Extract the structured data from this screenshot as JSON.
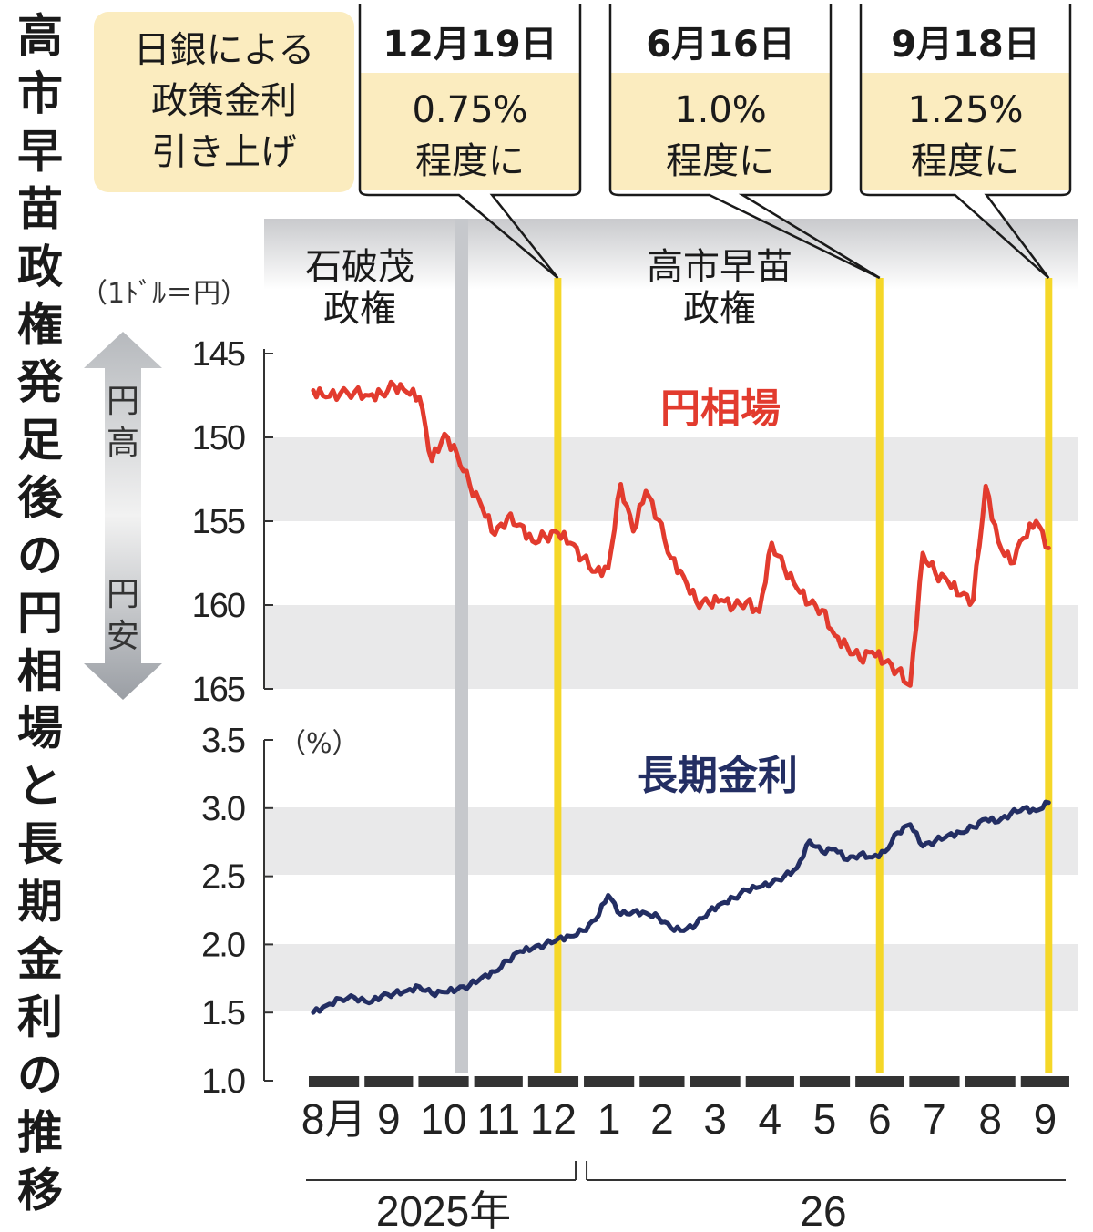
{
  "title": "高市早苗政権発足後の円相場と長期金利の推移",
  "colors": {
    "yen": "#e23b2e",
    "rate": "#232e63",
    "event_line": "#f5d728",
    "note_bg": "#fbecbf",
    "band": "#e9e9ea",
    "header_bar": "#d9dadc"
  },
  "legend": {
    "box_text": [
      "日銀による",
      "政策金利",
      "引き上げ"
    ],
    "events": [
      {
        "date": "12月19日",
        "rate": "0.75%",
        "suffix": "程度に"
      },
      {
        "date": "6月16日",
        "rate": "1.0%",
        "suffix": "程度に"
      },
      {
        "date": "9月18日",
        "rate": "1.25%",
        "suffix": "程度に"
      }
    ]
  },
  "eras": [
    {
      "lines": [
        "石破茂",
        "政権"
      ]
    },
    {
      "lines": [
        "高市早苗",
        "政権"
      ]
    }
  ],
  "chart_data": [
    {
      "type": "line",
      "series": [
        {
          "name": "円相場",
          "color": "#e23b2e"
        }
      ],
      "y_unit": "（1ﾄﾞﾙ＝円）",
      "direction_labels": {
        "up": "円高",
        "down": "円安"
      },
      "ylim": [
        145,
        165
      ],
      "y_inverted": true,
      "yticks": [
        "145",
        "150",
        "155",
        "160",
        "165"
      ],
      "x": [
        "2025-08-05",
        "2025-08-12",
        "2025-08-20",
        "2025-08-28",
        "2025-09-05",
        "2025-09-12",
        "2025-09-19",
        "2025-09-26",
        "2025-10-03",
        "2025-10-10",
        "2025-10-17",
        "2025-10-24",
        "2025-10-31",
        "2025-11-07",
        "2025-11-14",
        "2025-11-21",
        "2025-11-28",
        "2025-12-05",
        "2025-12-12",
        "2025-12-19",
        "2025-12-26",
        "2026-01-02",
        "2026-01-09",
        "2026-01-16",
        "2026-01-23",
        "2026-01-30",
        "2026-02-06",
        "2026-02-13",
        "2026-02-20",
        "2026-02-27",
        "2026-03-06",
        "2026-03-13",
        "2026-03-20",
        "2026-03-27",
        "2026-04-03",
        "2026-04-10",
        "2026-04-17",
        "2026-04-24",
        "2026-05-01",
        "2026-05-08",
        "2026-05-15",
        "2026-05-22",
        "2026-05-29",
        "2026-06-05",
        "2026-06-12",
        "2026-06-19",
        "2026-06-26",
        "2026-07-03",
        "2026-07-10",
        "2026-07-17",
        "2026-07-24",
        "2026-07-31",
        "2026-08-07",
        "2026-08-14",
        "2026-08-21",
        "2026-08-28",
        "2026-09-04",
        "2026-09-11",
        "2026-09-18"
      ],
      "values": [
        147.2,
        147.6,
        147.4,
        147.3,
        147.5,
        147.4,
        146.9,
        147.3,
        147.6,
        151.4,
        149.8,
        151.0,
        152.8,
        154.2,
        155.8,
        154.8,
        155.2,
        156.2,
        155.9,
        155.7,
        156.3,
        157.2,
        158.0,
        157.8,
        152.8,
        155.6,
        153.2,
        154.9,
        157.2,
        158.3,
        159.8,
        159.9,
        159.7,
        160.1,
        159.8,
        160.4,
        156.3,
        157.8,
        159.0,
        159.9,
        160.3,
        161.8,
        162.5,
        163.2,
        162.8,
        163.4,
        163.9,
        164.8,
        156.9,
        158.1,
        158.6,
        159.4,
        159.7,
        152.9,
        156.2,
        157.5,
        156.0,
        155.0,
        156.6
      ]
    },
    {
      "type": "line",
      "series": [
        {
          "name": "長期金利",
          "color": "#232e63"
        }
      ],
      "y_unit": "（%）",
      "ylim": [
        1.0,
        3.5
      ],
      "yticks": [
        "1.0",
        "1.5",
        "2.0",
        "2.5",
        "3.0",
        "3.5"
      ],
      "x": [
        "2025-08-05",
        "2025-08-12",
        "2025-08-20",
        "2025-08-28",
        "2025-09-05",
        "2025-09-12",
        "2025-09-19",
        "2025-09-26",
        "2025-10-03",
        "2025-10-10",
        "2025-10-17",
        "2025-10-24",
        "2025-10-31",
        "2025-11-07",
        "2025-11-14",
        "2025-11-21",
        "2025-11-28",
        "2025-12-05",
        "2025-12-12",
        "2025-12-19",
        "2025-12-26",
        "2026-01-02",
        "2026-01-09",
        "2026-01-16",
        "2026-01-23",
        "2026-01-30",
        "2026-02-06",
        "2026-02-13",
        "2026-02-20",
        "2026-02-27",
        "2026-03-06",
        "2026-03-13",
        "2026-03-20",
        "2026-03-27",
        "2026-04-03",
        "2026-04-10",
        "2026-04-17",
        "2026-04-24",
        "2026-05-01",
        "2026-05-08",
        "2026-05-15",
        "2026-05-22",
        "2026-05-29",
        "2026-06-05",
        "2026-06-12",
        "2026-06-19",
        "2026-06-26",
        "2026-07-03",
        "2026-07-10",
        "2026-07-17",
        "2026-07-24",
        "2026-07-31",
        "2026-08-07",
        "2026-08-14",
        "2026-08-21",
        "2026-08-28",
        "2026-09-04",
        "2026-09-11",
        "2026-09-18"
      ],
      "values": [
        1.5,
        1.55,
        1.6,
        1.61,
        1.57,
        1.62,
        1.64,
        1.66,
        1.69,
        1.64,
        1.65,
        1.67,
        1.7,
        1.76,
        1.8,
        1.88,
        1.95,
        1.97,
        2.0,
        2.04,
        2.06,
        2.1,
        2.18,
        2.36,
        2.22,
        2.24,
        2.23,
        2.2,
        2.12,
        2.1,
        2.15,
        2.24,
        2.3,
        2.34,
        2.4,
        2.42,
        2.45,
        2.5,
        2.56,
        2.76,
        2.68,
        2.7,
        2.62,
        2.66,
        2.64,
        2.68,
        2.82,
        2.88,
        2.72,
        2.76,
        2.8,
        2.82,
        2.86,
        2.92,
        2.9,
        2.96,
        3.0,
        2.98,
        3.04
      ]
    }
  ],
  "x_axis": {
    "months": [
      "8月",
      "9",
      "10",
      "11",
      "12",
      "1",
      "2",
      "3",
      "4",
      "5",
      "6",
      "7",
      "8",
      "9"
    ],
    "years": [
      "2025年",
      "26"
    ]
  }
}
